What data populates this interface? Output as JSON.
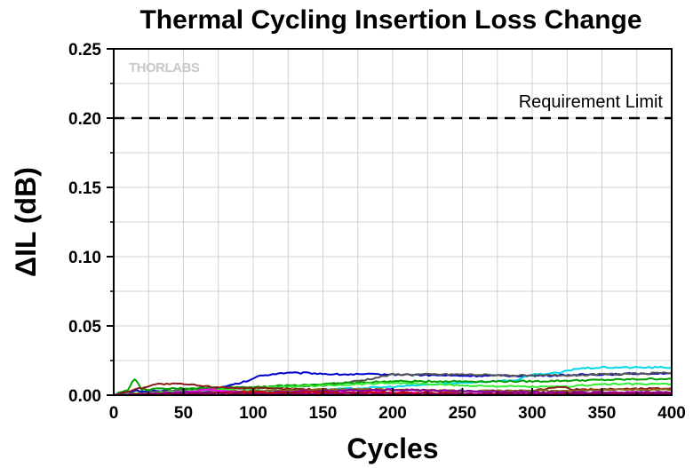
{
  "chart_data": {
    "type": "line",
    "title": "Thermal Cycling Insertion Loss Change",
    "xlabel": "Cycles",
    "ylabel": "ΔIL (dB)",
    "xlim": [
      0,
      400
    ],
    "ylim": [
      0,
      0.25
    ],
    "x_ticks": [
      "0",
      "50",
      "100",
      "150",
      "200",
      "250",
      "300",
      "350",
      "400"
    ],
    "y_ticks": [
      "0.00",
      "0.05",
      "0.10",
      "0.15",
      "0.20",
      "0.25"
    ],
    "grid": true,
    "legend": "none",
    "watermark": "THORLABS",
    "annotation": {
      "text": "Requirement Limit",
      "y": 0.2,
      "line_style": "dashed"
    },
    "series": [
      {
        "color": "#0000cc",
        "x": [
          0,
          15,
          40,
          70,
          80,
          95,
          105,
          120,
          140,
          160,
          200,
          250,
          300,
          350,
          400
        ],
        "values": [
          0,
          0.003,
          0.003,
          0.004,
          0.006,
          0.01,
          0.014,
          0.016,
          0.016,
          0.015,
          0.015,
          0.014,
          0.014,
          0.015,
          0.016
        ]
      },
      {
        "color": "#00d8e8",
        "x": [
          0,
          50,
          100,
          150,
          200,
          250,
          290,
          300,
          320,
          330,
          350,
          400
        ],
        "values": [
          0,
          0.002,
          0.003,
          0.004,
          0.006,
          0.009,
          0.011,
          0.015,
          0.016,
          0.019,
          0.02,
          0.02
        ]
      },
      {
        "color": "#555555",
        "x": [
          0,
          50,
          100,
          150,
          180,
          200,
          250,
          300,
          350,
          400
        ],
        "values": [
          0,
          0.004,
          0.005,
          0.007,
          0.011,
          0.015,
          0.015,
          0.014,
          0.015,
          0.016
        ]
      },
      {
        "color": "#00a000",
        "x": [
          0,
          10,
          15,
          20,
          50,
          100,
          150,
          200,
          250,
          300,
          350,
          400
        ],
        "values": [
          0,
          0.004,
          0.012,
          0.004,
          0.005,
          0.006,
          0.008,
          0.01,
          0.01,
          0.01,
          0.011,
          0.012
        ]
      },
      {
        "color": "#33ee33",
        "x": [
          0,
          50,
          100,
          150,
          200,
          250,
          300,
          320,
          350,
          400
        ],
        "values": [
          0,
          0.003,
          0.005,
          0.007,
          0.009,
          0.007,
          0.006,
          0.006,
          0.008,
          0.008
        ]
      },
      {
        "color": "#8b1a1a",
        "x": [
          0,
          30,
          50,
          70,
          100,
          150,
          200,
          250,
          300,
          320,
          330,
          400
        ],
        "values": [
          0,
          0.008,
          0.008,
          0.006,
          0.005,
          0.004,
          0.004,
          0.003,
          0.003,
          0.006,
          0.004,
          0.005
        ]
      },
      {
        "color": "#8b6914",
        "x": [
          0,
          50,
          100,
          150,
          200,
          250,
          300,
          350,
          400
        ],
        "values": [
          0,
          0.002,
          0.003,
          0.004,
          0.004,
          0.003,
          0.003,
          0.004,
          0.004
        ]
      },
      {
        "color": "#ff00ff",
        "x": [
          0,
          50,
          70,
          100,
          150,
          200,
          250,
          300,
          350,
          400
        ],
        "values": [
          0,
          0.002,
          0.004,
          0.001,
          0.002,
          0.002,
          0.001,
          0.001,
          0.002,
          0.002
        ]
      },
      {
        "color": "#8800aa",
        "x": [
          0,
          50,
          100,
          150,
          200,
          250,
          300,
          350,
          400
        ],
        "values": [
          0,
          0.002,
          0.002,
          0.003,
          0.004,
          0.003,
          0.002,
          0.002,
          0.002
        ]
      },
      {
        "color": "#cc0000",
        "x": [
          0,
          50,
          100,
          150,
          200,
          250,
          300,
          350,
          400
        ],
        "values": [
          0,
          0.001,
          0.002,
          0.002,
          0.002,
          0.001,
          0.001,
          0.001,
          0.001
        ]
      },
      {
        "color": "#880055",
        "x": [
          0,
          50,
          100,
          150,
          200,
          250,
          300,
          350,
          400
        ],
        "values": [
          0,
          0.001,
          0.001,
          0.001,
          0.001,
          0.001,
          0.001,
          0.001,
          0.001
        ]
      }
    ]
  }
}
